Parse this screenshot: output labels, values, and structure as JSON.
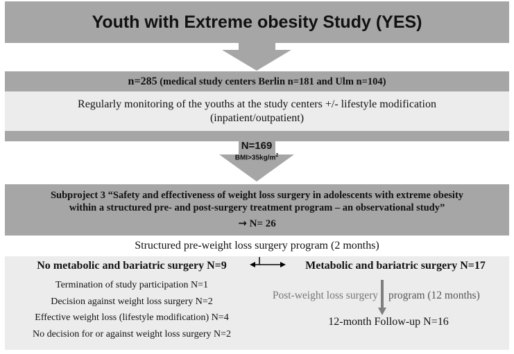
{
  "title": "Youth with Extreme obesity Study (YES)",
  "cohort": {
    "n_label": "n=285",
    "centers": "(medical study centers Berlin n=181 and Ulm n=104)",
    "monitoring_line1": "Regularly monitoring of the youths at the study centers +/- lifestyle modification",
    "monitoring_line2": "(inpatient/outpatient)"
  },
  "arrow2": {
    "n_label": "N=169",
    "criterion": "BMI>35kg/m",
    "criterion_sup": "2"
  },
  "subproject": {
    "line1": "Subproject 3 “Safety and  effectiveness of weight loss surgery  in adolescents with extreme obesity",
    "line2": "within  a structured pre- and post-surgery treatment program  – an observational study”",
    "arrow_glyph": "→",
    "n_label": "N= 26"
  },
  "pre_program": "Structured pre-weight loss surgery program  (2 months)",
  "no_surgery": {
    "heading": "No metabolic and bariatric surgery  N=9",
    "items": [
      "Termination  of study participation  N=1",
      "Decision against weight loss surgery N=2",
      "Effective weight loss (lifestyle modification) N=4",
      "No decision for or against weight loss surgery N=2"
    ]
  },
  "surgery": {
    "heading": "Metabolic and bariatric  surgery  N=17",
    "post_program_left": "Post-weight loss surgery",
    "post_program_right": "program  (12 months)",
    "followup": "12-month Follow-up N=16"
  },
  "colors": {
    "band": "#a6a6a6",
    "light": "#ececec",
    "arrow": "#a6a6a6",
    "dark_arrow": "#7f7f7f"
  }
}
